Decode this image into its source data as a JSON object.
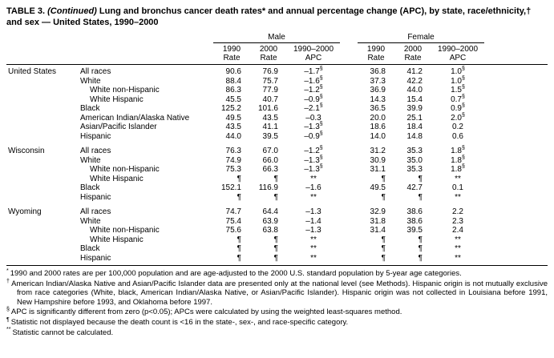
{
  "title": {
    "number": "TABLE 3.",
    "continued": "(Continued)",
    "text": "Lung and bronchus cancer death rates* and annual percentage change (APC), by state, race/ethnicity,† and sex — United States, 1990–2000"
  },
  "table": {
    "sex_headers": [
      "Male",
      "Female"
    ],
    "columns": [
      {
        "l1": "1990",
        "l2": "Rate"
      },
      {
        "l1": "2000",
        "l2": "Rate"
      },
      {
        "l1": "1990–2000",
        "l2": "APC"
      }
    ],
    "groups": [
      {
        "name": "United States",
        "rows": [
          {
            "label": "All races",
            "indent": 1,
            "male": [
              "90.6",
              "76.9",
              "–1.7§"
            ],
            "female": [
              "36.8",
              "41.2",
              "1.0§"
            ]
          },
          {
            "label": "White",
            "indent": 1,
            "male": [
              "88.4",
              "75.7",
              "–1.6§"
            ],
            "female": [
              "37.3",
              "42.2",
              "1.0§"
            ]
          },
          {
            "label": "White non-Hispanic",
            "indent": 2,
            "male": [
              "86.3",
              "77.9",
              "–1.2§"
            ],
            "female": [
              "36.9",
              "44.0",
              "1.5§"
            ]
          },
          {
            "label": "White Hispanic",
            "indent": 2,
            "male": [
              "45.5",
              "40.7",
              "–0.9§"
            ],
            "female": [
              "14.3",
              "15.4",
              "0.7§"
            ]
          },
          {
            "label": "Black",
            "indent": 1,
            "male": [
              "125.2",
              "101.6",
              "–2.1§"
            ],
            "female": [
              "36.5",
              "39.9",
              "0.9§"
            ]
          },
          {
            "label": "American Indian/Alaska Native",
            "indent": 1,
            "male": [
              "49.5",
              "43.5",
              "–0.3"
            ],
            "female": [
              "20.0",
              "25.1",
              "2.0§"
            ]
          },
          {
            "label": "Asian/Pacific Islander",
            "indent": 1,
            "male": [
              "43.5",
              "41.1",
              "–1.3§"
            ],
            "female": [
              "18.6",
              "18.4",
              "0.2"
            ]
          },
          {
            "label": "Hispanic",
            "indent": 1,
            "male": [
              "44.0",
              "39.5",
              "–0.9§"
            ],
            "female": [
              "14.0",
              "14.8",
              "0.6"
            ]
          }
        ]
      },
      {
        "name": "Wisconsin",
        "rows": [
          {
            "label": "All races",
            "indent": 1,
            "male": [
              "76.3",
              "67.0",
              "–1.2§"
            ],
            "female": [
              "31.2",
              "35.3",
              "1.8§"
            ]
          },
          {
            "label": "White",
            "indent": 1,
            "male": [
              "74.9",
              "66.0",
              "–1.3§"
            ],
            "female": [
              "30.9",
              "35.0",
              "1.8§"
            ]
          },
          {
            "label": "White non-Hispanic",
            "indent": 2,
            "male": [
              "75.3",
              "66.3",
              "–1.3§"
            ],
            "female": [
              "31.1",
              "35.3",
              "1.8§"
            ]
          },
          {
            "label": "White Hispanic",
            "indent": 2,
            "male": [
              "¶",
              "¶",
              "**"
            ],
            "female": [
              "¶",
              "¶",
              "**"
            ]
          },
          {
            "label": "Black",
            "indent": 1,
            "male": [
              "152.1",
              "116.9",
              "–1.6"
            ],
            "female": [
              "49.5",
              "42.7",
              "0.1"
            ]
          },
          {
            "label": "Hispanic",
            "indent": 1,
            "male": [
              "¶",
              "¶",
              "**"
            ],
            "female": [
              "¶",
              "¶",
              "**"
            ]
          }
        ]
      },
      {
        "name": "Wyoming",
        "rows": [
          {
            "label": "All races",
            "indent": 1,
            "male": [
              "74.7",
              "64.4",
              "–1.3"
            ],
            "female": [
              "32.9",
              "38.6",
              "2.2"
            ]
          },
          {
            "label": "White",
            "indent": 1,
            "male": [
              "75.4",
              "63.9",
              "–1.4"
            ],
            "female": [
              "31.8",
              "38.6",
              "2.3"
            ]
          },
          {
            "label": "White non-Hispanic",
            "indent": 2,
            "male": [
              "75.6",
              "63.8",
              "–1.3"
            ],
            "female": [
              "31.4",
              "39.5",
              "2.4"
            ]
          },
          {
            "label": "White Hispanic",
            "indent": 2,
            "male": [
              "¶",
              "¶",
              "**"
            ],
            "female": [
              "¶",
              "¶",
              "**"
            ]
          },
          {
            "label": "Black",
            "indent": 1,
            "male": [
              "¶",
              "¶",
              "**"
            ],
            "female": [
              "¶",
              "¶",
              "**"
            ]
          },
          {
            "label": "Hispanic",
            "indent": 1,
            "male": [
              "¶",
              "¶",
              "**"
            ],
            "female": [
              "¶",
              "¶",
              "**"
            ]
          }
        ]
      }
    ]
  },
  "footnotes": [
    {
      "marker": "*",
      "text": "1990 and 2000 rates are per 100,000 population and are age-adjusted to the 2000 U.S. standard population by 5-year age categories."
    },
    {
      "marker": "†",
      "text": "American Indian/Alaska Native and Asian/Pacific Islander data are presented only at the national level (see Methods). Hispanic origin is not mutually exclusive from race categories (White, black, American Indian/Alaska Native, or Asian/Pacific Islander). Hispanic origin was not collected in Louisiana before 1991, New Hampshire before 1993, and Oklahoma before 1997."
    },
    {
      "marker": "§",
      "text": "APC is significantly different from zero (p<0.05); APCs were calculated by using the weighted least-squares method."
    },
    {
      "marker": "¶",
      "text": "Statistic not displayed because the death count is <16 in the state-, sex-, and race-specific category."
    },
    {
      "marker": "**",
      "text": "Statistic cannot be calculated."
    }
  ]
}
